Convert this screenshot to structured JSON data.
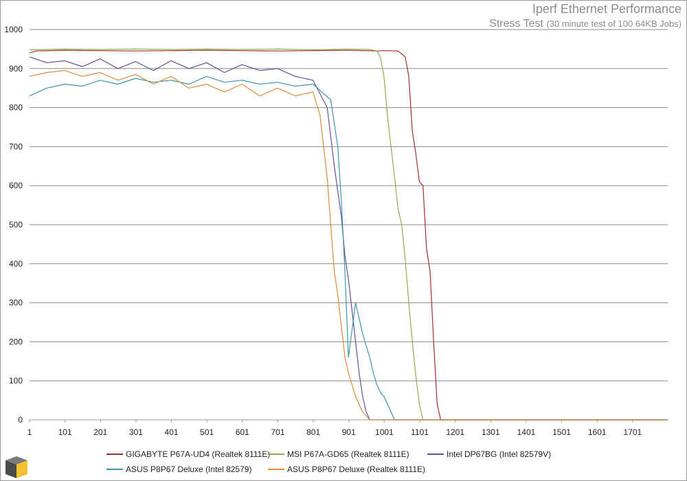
{
  "title": "Iperf Ethernet Performance",
  "subtitle_main": "Stress Test",
  "subtitle_note": "(30 minute test of 100 64KB Jobs)",
  "chart_data": {
    "type": "line",
    "title": "Iperf Ethernet Performance",
    "subtitle": "Stress Test (30 minute test of 100 64KB Jobs)",
    "xlabel": "",
    "ylabel": "",
    "ylim": [
      0,
      1000
    ],
    "xlim": [
      1,
      1800
    ],
    "y_ticks": [
      "0",
      "100",
      "200",
      "300",
      "400",
      "500",
      "600",
      "700",
      "800",
      "900",
      "1000"
    ],
    "x_ticks": [
      "1",
      "101",
      "201",
      "301",
      "401",
      "501",
      "601",
      "701",
      "801",
      "901",
      "1001",
      "1101",
      "1201",
      "1301",
      "1401",
      "1501",
      "1601",
      "1701"
    ],
    "grid": true,
    "legend_position": "bottom",
    "series": [
      {
        "name": "GIGABYTE P67A-UD4 (Realtek 8111E)",
        "color": "#a0302e",
        "x": [
          1,
          20,
          100,
          200,
          300,
          400,
          500,
          600,
          700,
          800,
          900,
          980,
          1000,
          1040,
          1060,
          1070,
          1080,
          1090,
          1100,
          1110,
          1120,
          1130,
          1140,
          1150,
          1160,
          1800
        ],
        "y": [
          940,
          945,
          947,
          946,
          945,
          946,
          947,
          946,
          945,
          946,
          947,
          945,
          946,
          945,
          930,
          880,
          740,
          680,
          610,
          600,
          440,
          380,
          200,
          40,
          0,
          0
        ]
      },
      {
        "name": "MSI P67A-GD65 (Realtek 8111E)",
        "color": "#8fae4a",
        "x": [
          1,
          100,
          200,
          300,
          400,
          500,
          600,
          700,
          800,
          900,
          960,
          980,
          990,
          1000,
          1010,
          1020,
          1030,
          1040,
          1050,
          1060,
          1070,
          1080,
          1090,
          1100,
          1110,
          1800
        ],
        "y": [
          948,
          950,
          949,
          950,
          949,
          950,
          949,
          950,
          948,
          950,
          949,
          945,
          930,
          880,
          780,
          700,
          620,
          540,
          500,
          410,
          300,
          200,
          110,
          40,
          0,
          0
        ]
      },
      {
        "name": "Intel DP67BG (Intel 82579V)",
        "color": "#6a4a9b",
        "x": [
          1,
          50,
          100,
          150,
          200,
          250,
          300,
          350,
          400,
          450,
          500,
          550,
          600,
          650,
          700,
          750,
          800,
          840,
          860,
          880,
          890,
          900,
          910,
          920,
          930,
          940,
          950,
          960,
          1800
        ],
        "y": [
          930,
          915,
          920,
          905,
          925,
          900,
          918,
          895,
          920,
          900,
          915,
          890,
          910,
          895,
          900,
          880,
          870,
          800,
          650,
          520,
          420,
          360,
          280,
          200,
          120,
          60,
          20,
          0,
          0
        ]
      },
      {
        "name": "ASUS P8P67 Deluxe (Intel 82579)",
        "color": "#3a96ac",
        "x": [
          1,
          50,
          100,
          150,
          200,
          250,
          300,
          350,
          400,
          450,
          500,
          550,
          600,
          650,
          700,
          750,
          800,
          850,
          870,
          880,
          890,
          900,
          920,
          940,
          960,
          970,
          980,
          990,
          1000,
          1010,
          1020,
          1030,
          1800
        ],
        "y": [
          830,
          850,
          860,
          855,
          870,
          860,
          875,
          865,
          870,
          860,
          880,
          865,
          870,
          860,
          865,
          855,
          860,
          820,
          700,
          560,
          380,
          160,
          300,
          220,
          160,
          120,
          90,
          70,
          60,
          40,
          20,
          0,
          0
        ]
      },
      {
        "name": "ASUS P8P67 Deluxe (Realtek 8111E)",
        "color": "#df8a3c",
        "x": [
          1,
          50,
          100,
          150,
          200,
          250,
          300,
          350,
          400,
          450,
          500,
          550,
          600,
          650,
          700,
          750,
          800,
          820,
          840,
          850,
          860,
          870,
          880,
          890,
          900,
          910,
          920,
          930,
          940,
          960,
          1800
        ],
        "y": [
          880,
          890,
          895,
          880,
          890,
          870,
          885,
          860,
          880,
          850,
          860,
          840,
          860,
          830,
          850,
          830,
          840,
          780,
          620,
          500,
          380,
          320,
          240,
          160,
          120,
          90,
          60,
          40,
          20,
          0,
          0
        ]
      }
    ]
  }
}
